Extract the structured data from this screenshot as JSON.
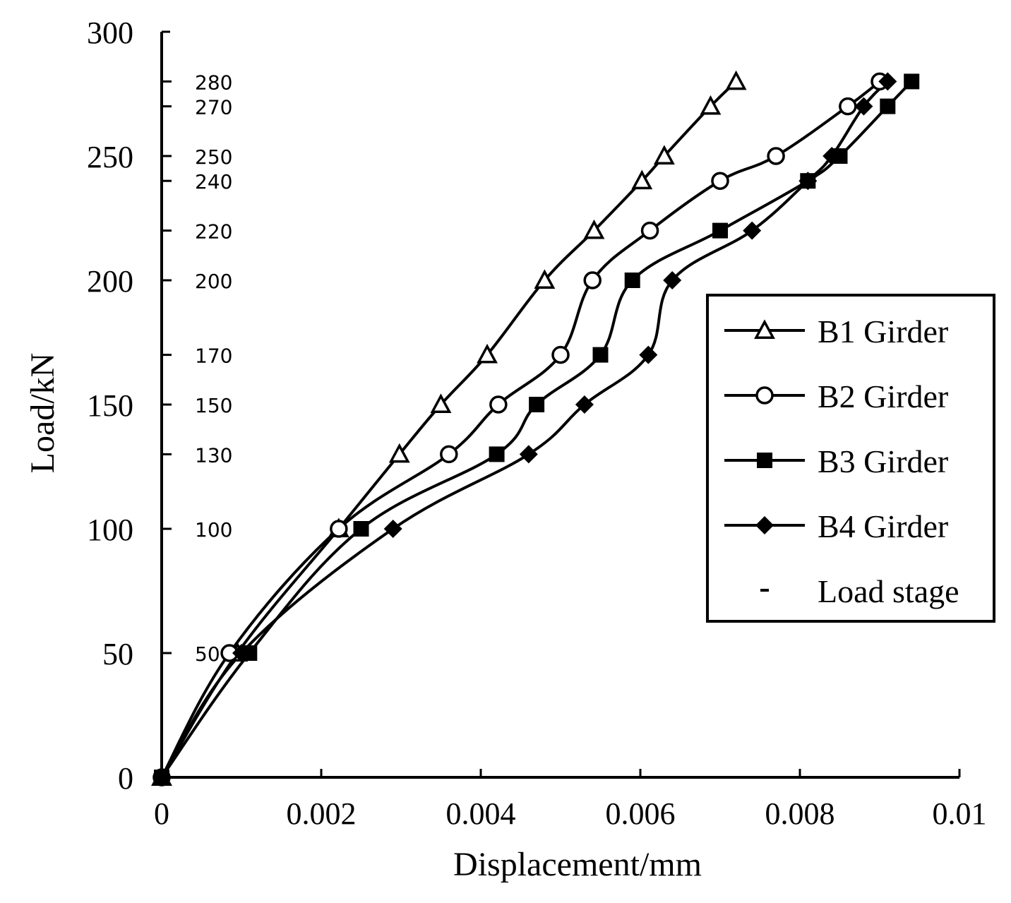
{
  "chart_data": {
    "type": "line",
    "xlabel": "Displacement/mm",
    "ylabel": "Load/kN",
    "xlim": [
      0,
      0.01
    ],
    "ylim": [
      0,
      300
    ],
    "x_ticks": [
      "0",
      "0.002",
      "0.004",
      "0.006",
      "0.008",
      "0.01"
    ],
    "y_ticks": [
      "0",
      "50",
      "100",
      "150",
      "200",
      "250",
      "300"
    ],
    "grid": false,
    "legend_position": "right",
    "load_stage_labels": [
      "50",
      "100",
      "130",
      "150",
      "170",
      "200",
      "220",
      "240",
      "250",
      "270",
      "280"
    ],
    "load_stage_values": [
      50,
      100,
      130,
      150,
      170,
      200,
      220,
      240,
      250,
      270,
      280
    ],
    "series": [
      {
        "name": "B1 Girder",
        "marker": "triangle-open",
        "x": [
          0,
          0.00095,
          0.00222,
          0.00298,
          0.0035,
          0.00408,
          0.0048,
          0.00542,
          0.00602,
          0.0063,
          0.00688,
          0.0072
        ],
        "y": [
          0,
          50,
          100,
          130,
          150,
          170,
          200,
          220,
          240,
          250,
          270,
          280
        ]
      },
      {
        "name": "B2 Girder",
        "marker": "circle-open",
        "x": [
          0,
          0.00085,
          0.00222,
          0.0036,
          0.00422,
          0.005,
          0.0054,
          0.00612,
          0.007,
          0.0077,
          0.0086,
          0.009
        ],
        "y": [
          0,
          50,
          100,
          130,
          150,
          170,
          200,
          220,
          240,
          250,
          270,
          280
        ]
      },
      {
        "name": "B3 Girder",
        "marker": "square-filled",
        "x": [
          0,
          0.0011,
          0.0025,
          0.0042,
          0.0047,
          0.0055,
          0.0059,
          0.007,
          0.0081,
          0.0085,
          0.0091,
          0.0094
        ],
        "y": [
          0,
          50,
          100,
          130,
          150,
          170,
          200,
          220,
          240,
          250,
          270,
          280
        ]
      },
      {
        "name": "B4 Girder",
        "marker": "diamond-filled",
        "x": [
          0,
          0.001,
          0.0029,
          0.0046,
          0.0053,
          0.0061,
          0.0064,
          0.0074,
          0.0081,
          0.0084,
          0.0088,
          0.0091
        ],
        "y": [
          0,
          50,
          100,
          130,
          150,
          170,
          200,
          220,
          240,
          250,
          270,
          280
        ]
      }
    ],
    "legend_extra": "Load stage"
  },
  "colors": {
    "line": "#000000",
    "background": "#ffffff"
  }
}
